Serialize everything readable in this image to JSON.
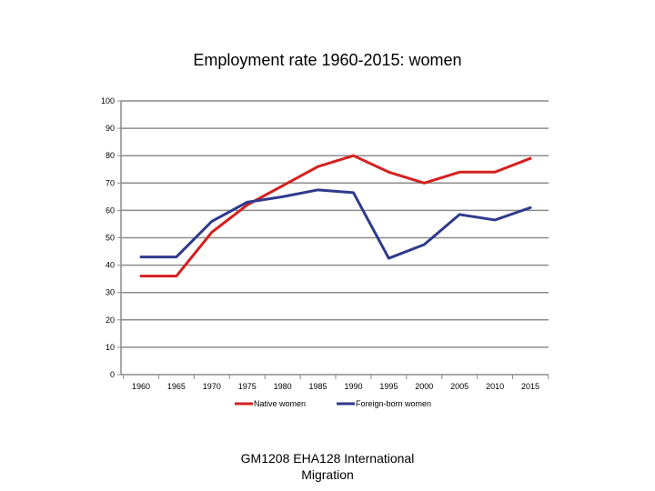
{
  "chart_data": {
    "type": "line",
    "title": "Employment rate 1960-2015: women",
    "xlabel": "",
    "ylabel": "",
    "x": [
      "1960",
      "1965",
      "1970",
      "1975",
      "1980",
      "1985",
      "1990",
      "1995",
      "2000",
      "2005",
      "2010",
      "2015"
    ],
    "ylim": [
      0,
      100
    ],
    "yticks": [
      0,
      10,
      20,
      30,
      40,
      50,
      60,
      70,
      80,
      90,
      100
    ],
    "grid": true,
    "legend": "bottom",
    "series": [
      {
        "name": "Native women",
        "color": "#d42020",
        "values": [
          36,
          36,
          52,
          62,
          69,
          76,
          80,
          74,
          70,
          74,
          74,
          79
        ]
      },
      {
        "name": "Foreign-born women",
        "color": "#2e3a8c",
        "values": [
          43,
          43,
          56,
          63,
          65,
          67.5,
          66.5,
          42.5,
          47.5,
          58.5,
          56.5,
          61
        ]
      }
    ]
  },
  "footer": {
    "line1": "GM1208 EHA128   International",
    "line2": "Migration"
  }
}
